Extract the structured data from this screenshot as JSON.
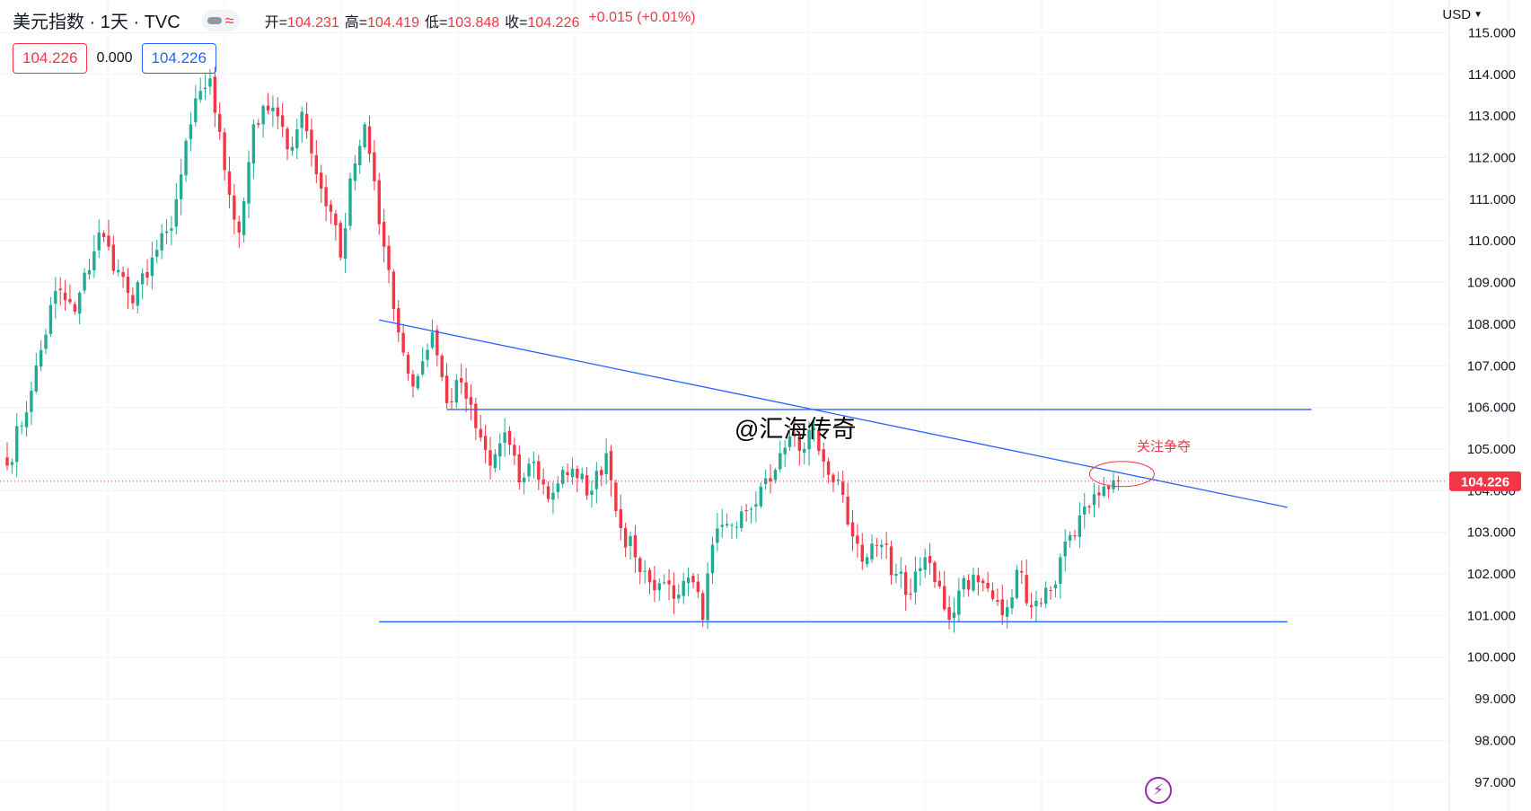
{
  "header": {
    "symbol_title": "美元指数 · 1天 · TVC",
    "ohlc": {
      "open_label": "开=",
      "open": "104.231",
      "high_label": "高=",
      "high": "104.419",
      "low_label": "低=",
      "low": "103.848",
      "close_label": "收=",
      "close": "104.226",
      "change": "+0.015 (+0.01%)"
    },
    "sell_price": "104.226",
    "spread": "0.000",
    "buy_price": "104.226",
    "currency": "USD",
    "icons": [
      "eye-icon",
      "wave-icon",
      "chevron-down-icon",
      "lightning-icon"
    ]
  },
  "annotations": {
    "watermark": "@汇海传奇",
    "note": "关注争夺"
  },
  "colors": {
    "up": "#22ab94",
    "down": "#f23645",
    "trendline": "#2962ff",
    "last_price_label": "#f23645",
    "ellipse": "#f23645"
  },
  "chart_data": {
    "type": "candlestick",
    "y_ticks": [
      "97.000",
      "98.000",
      "99.000",
      "100.000",
      "101.000",
      "102.000",
      "103.000",
      "104.000",
      "105.000",
      "106.000",
      "107.000",
      "108.000",
      "109.000",
      "110.000",
      "111.000",
      "112.000",
      "113.000",
      "114.000",
      "115.000"
    ],
    "ylim": [
      96.5,
      115.2
    ],
    "last_price": 104.226,
    "last_price_label": "104.226",
    "bar_count": 250,
    "anchors": [
      [
        0,
        104.6
      ],
      [
        5,
        106.4
      ],
      [
        10,
        108.8
      ],
      [
        14,
        108.3
      ],
      [
        19,
        110.2
      ],
      [
        23,
        109.3
      ],
      [
        26,
        108.5
      ],
      [
        30,
        109.6
      ],
      [
        34,
        110.3
      ],
      [
        38,
        112.8
      ],
      [
        40,
        113.6
      ],
      [
        42,
        113.9
      ],
      [
        45,
        111.7
      ],
      [
        48,
        110.2
      ],
      [
        51,
        112.8
      ],
      [
        55,
        113.2
      ],
      [
        58,
        112.2
      ],
      [
        61,
        113.1
      ],
      [
        64,
        111.6
      ],
      [
        67,
        110.7
      ],
      [
        69,
        109.6
      ],
      [
        71,
        111.5
      ],
      [
        74,
        112.8
      ],
      [
        77,
        110.4
      ],
      [
        79,
        109.3
      ],
      [
        81,
        107.8
      ],
      [
        84,
        106.5
      ],
      [
        88,
        107.8
      ],
      [
        91,
        106.1
      ],
      [
        94,
        106.6
      ],
      [
        97,
        105.5
      ],
      [
        100,
        104.6
      ],
      [
        103,
        105.4
      ],
      [
        106,
        104.2
      ],
      [
        109,
        104.7
      ],
      [
        112,
        103.8
      ],
      [
        115,
        104.5
      ],
      [
        118,
        104.3
      ],
      [
        121,
        104.0
      ],
      [
        124,
        104.9
      ],
      [
        127,
        103.1
      ],
      [
        130,
        102.4
      ],
      [
        133,
        101.8
      ],
      [
        136,
        101.8
      ],
      [
        139,
        101.5
      ],
      [
        142,
        101.8
      ],
      [
        144,
        100.9
      ],
      [
        146,
        102.7
      ],
      [
        149,
        103.2
      ],
      [
        152,
        103.5
      ],
      [
        156,
        104.1
      ],
      [
        159,
        104.5
      ],
      [
        162,
        105.3
      ],
      [
        165,
        105.0
      ],
      [
        167,
        105.5
      ],
      [
        169,
        104.7
      ],
      [
        171,
        104.2
      ],
      [
        173,
        103.9
      ],
      [
        175,
        102.9
      ],
      [
        178,
        102.4
      ],
      [
        181,
        102.7
      ],
      [
        184,
        102.0
      ],
      [
        187,
        101.5
      ],
      [
        190,
        102.4
      ],
      [
        193,
        101.7
      ],
      [
        195,
        100.9
      ],
      [
        198,
        101.9
      ],
      [
        201,
        101.8
      ],
      [
        204,
        101.4
      ],
      [
        207,
        101.2
      ],
      [
        209,
        102.1
      ],
      [
        212,
        101.2
      ],
      [
        214,
        101.3
      ],
      [
        216,
        101.6
      ],
      [
        218,
        102.4
      ],
      [
        221,
        102.9
      ],
      [
        224,
        103.6
      ],
      [
        227,
        104.1
      ],
      [
        229,
        104.25
      ],
      [
        230,
        104.226
      ]
    ],
    "trendlines": [
      {
        "from": [
          77,
          108.1
        ],
        "to": [
          265,
          103.6
        ]
      },
      {
        "from": [
          91,
          105.95
        ],
        "to": [
          270,
          105.95
        ]
      },
      {
        "from": [
          77,
          100.85
        ],
        "to": [
          265,
          100.85
        ]
      }
    ],
    "ellipse_center": [
      230,
      104.4
    ]
  }
}
